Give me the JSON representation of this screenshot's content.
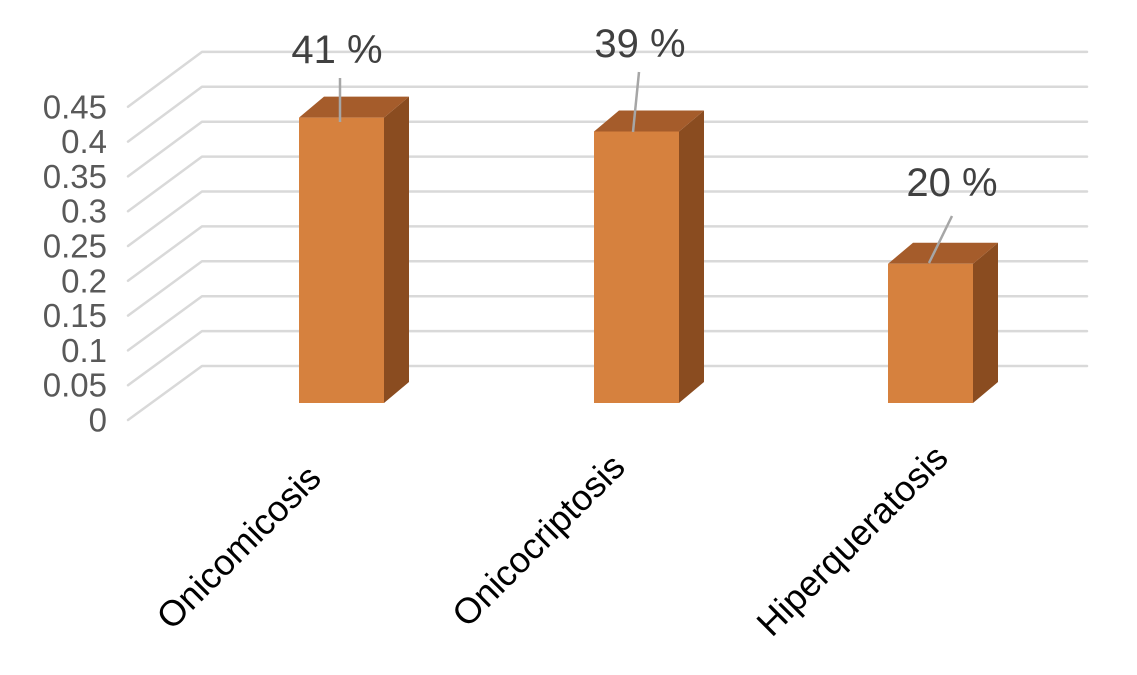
{
  "chart_data": {
    "type": "bar",
    "projection": "3d-column",
    "title": "",
    "xlabel": "",
    "ylabel": "",
    "categories": [
      "Onicomicosis",
      "Onicocriptosis",
      "Hiperqueratosis"
    ],
    "values": [
      0.41,
      0.39,
      0.2
    ],
    "data_labels": [
      "41 %",
      "39 %",
      "20 %"
    ],
    "series": [
      {
        "name": "",
        "values": [
          0.41,
          0.39,
          0.2
        ]
      }
    ],
    "ylim": [
      0,
      0.45
    ],
    "ytick_step": 0.05,
    "ytick_labels": [
      "0",
      "0.05",
      "0.1",
      "0.15",
      "0.2",
      "0.25",
      "0.3",
      "0.35",
      "0.4",
      "0.45"
    ],
    "grid": true,
    "legend": "none",
    "colors": {
      "bar_front": "#D6813E",
      "bar_top": "#A55C2B",
      "bar_side": "#8A4C20",
      "gridline": "#D9D9D9",
      "leader_line": "#A6A6A6",
      "tick_label_text": "#595959",
      "data_label_text": "#404040",
      "category_label_text": "#000000",
      "background": "#FFFFFF"
    }
  }
}
